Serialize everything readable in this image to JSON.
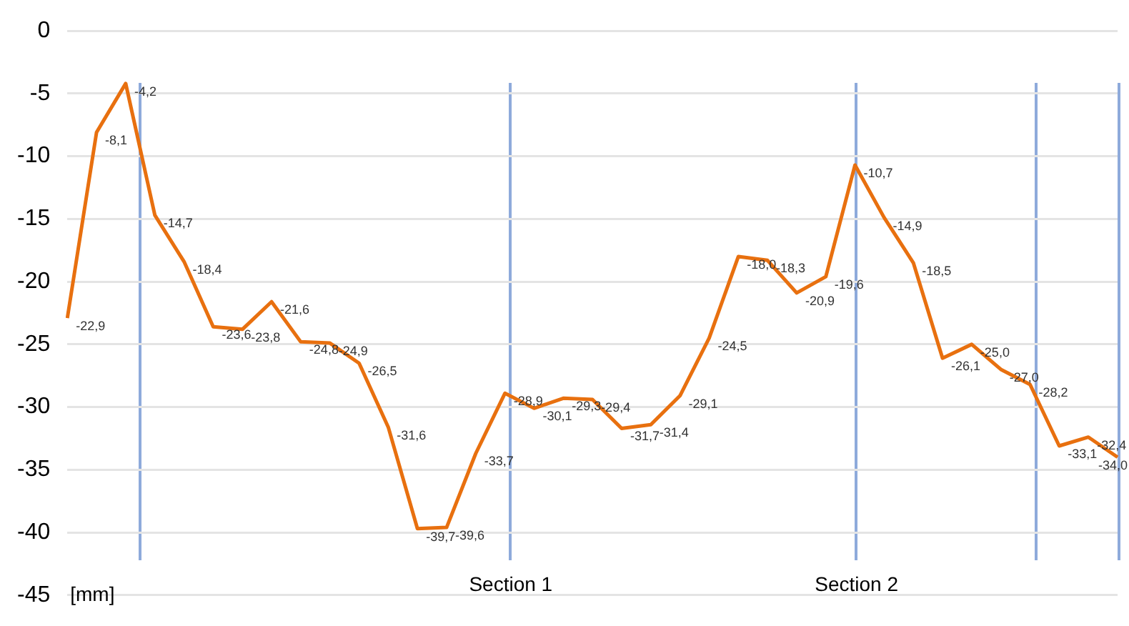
{
  "chart_data": {
    "type": "line",
    "ylabel": "[mm]",
    "categories": [
      null,
      null,
      null,
      null,
      null,
      null,
      null,
      null,
      null,
      null,
      null,
      null,
      null,
      null,
      null,
      null,
      null,
      null,
      null,
      null,
      null,
      null,
      null,
      null,
      null,
      null,
      null,
      null,
      null,
      null,
      null,
      null,
      null,
      null,
      null,
      null,
      null
    ],
    "series": [
      {
        "color": "#e8700f",
        "values": [
          -22.9,
          -8.1,
          -4.2,
          -14.7,
          -18.4,
          -23.6,
          -23.8,
          -21.6,
          -24.8,
          -24.9,
          -26.5,
          -31.6,
          -39.7,
          -39.6,
          -33.7,
          -28.9,
          -30.1,
          -29.3,
          -29.4,
          -31.7,
          -31.4,
          -29.1,
          -24.5,
          -18.0,
          -18.3,
          -20.9,
          -19.6,
          -10.7,
          -14.9,
          -18.5,
          -26.1,
          -25.0,
          -27.0,
          -28.2,
          -33.1,
          -32.4,
          -34.0
        ],
        "value_labels": [
          "-22,9",
          "-8,1",
          "-4,2",
          "-14,7",
          "-18,4",
          "-23,6",
          "-23,8",
          "-21,6",
          "-24,8",
          "-24,9",
          "-26,5",
          "-31,6",
          "-39,7",
          "-39,6",
          "-33,7",
          "-28,9",
          "-30,1",
          "-29,3",
          "-29,4",
          "-31,7",
          "-31,4",
          "-29,1",
          "-24,5",
          "-18,0",
          "-18,3",
          "-20,9",
          "-19,6",
          "-10,7",
          "-14,9",
          "-18,5",
          "-26,1",
          "-25,0",
          "-27,0",
          "-28,2",
          "-33,1",
          "-32,4",
          "-34,0"
        ]
      }
    ],
    "ylim": [
      -45,
      0
    ],
    "yticks": [
      0,
      -5,
      -10,
      -15,
      -20,
      -25,
      -30,
      -35,
      -40,
      -45
    ],
    "tick_labels": "y",
    "grid": "y",
    "legend": false,
    "marker": "none",
    "line_style": "solid",
    "annotations": [
      "Section 1",
      "Section 2"
    ]
  }
}
